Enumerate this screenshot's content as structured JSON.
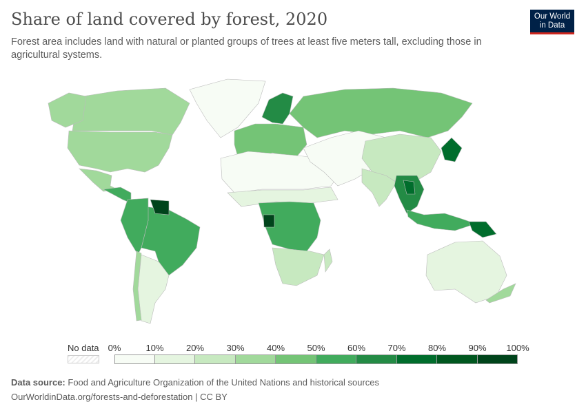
{
  "header": {
    "title": "Share of land covered by forest, 2020",
    "subtitle": "Forest area includes land with natural or planted groups of trees at least five meters tall, excluding those in agricultural systems.",
    "logo_line1": "Our World",
    "logo_line2": "in Data"
  },
  "legend": {
    "no_data_label": "No data",
    "ticks": [
      "0%",
      "10%",
      "20%",
      "30%",
      "40%",
      "50%",
      "60%",
      "70%",
      "80%",
      "90%",
      "100%"
    ],
    "colors": [
      "#f7fcf5",
      "#e5f5e0",
      "#c7e9c0",
      "#a1d99b",
      "#74c476",
      "#41ab5d",
      "#238b45",
      "#006d2c",
      "#00571f",
      "#00441b"
    ]
  },
  "map": {
    "regions": [
      {
        "name": "Greenland",
        "bin": 0
      },
      {
        "name": "Canada",
        "bin": 3
      },
      {
        "name": "Alaska",
        "bin": 3
      },
      {
        "name": "United States",
        "bin": 3
      },
      {
        "name": "Mexico",
        "bin": 3
      },
      {
        "name": "Central America",
        "bin": 5
      },
      {
        "name": "Brazil",
        "bin": 5
      },
      {
        "name": "Andean countries",
        "bin": 5
      },
      {
        "name": "Guianas",
        "bin": 9
      },
      {
        "name": "Argentina",
        "bin": 1
      },
      {
        "name": "Chile",
        "bin": 3
      },
      {
        "name": "Western Europe",
        "bin": 4
      },
      {
        "name": "Scandinavia",
        "bin": 6
      },
      {
        "name": "Russia",
        "bin": 4
      },
      {
        "name": "North Africa",
        "bin": 0
      },
      {
        "name": "Sahel",
        "bin": 1
      },
      {
        "name": "Central Africa",
        "bin": 5
      },
      {
        "name": "Gabon",
        "bin": 9
      },
      {
        "name": "Southern Africa",
        "bin": 2
      },
      {
        "name": "Madagascar",
        "bin": 2
      },
      {
        "name": "Middle East and Central Asia",
        "bin": 0
      },
      {
        "name": "China",
        "bin": 2
      },
      {
        "name": "India",
        "bin": 2
      },
      {
        "name": "Southeast Asia",
        "bin": 6
      },
      {
        "name": "Laos",
        "bin": 7
      },
      {
        "name": "Japan",
        "bin": 7
      },
      {
        "name": "Indonesia",
        "bin": 5
      },
      {
        "name": "Papua New Guinea",
        "bin": 7
      },
      {
        "name": "Australia",
        "bin": 1
      },
      {
        "name": "New Zealand",
        "bin": 3
      }
    ]
  },
  "footer": {
    "source_label": "Data source:",
    "source_text": "Food and Agriculture Organization of the United Nations and historical sources",
    "url": "OurWorldinData.org/forests-and-deforestation | CC BY"
  }
}
